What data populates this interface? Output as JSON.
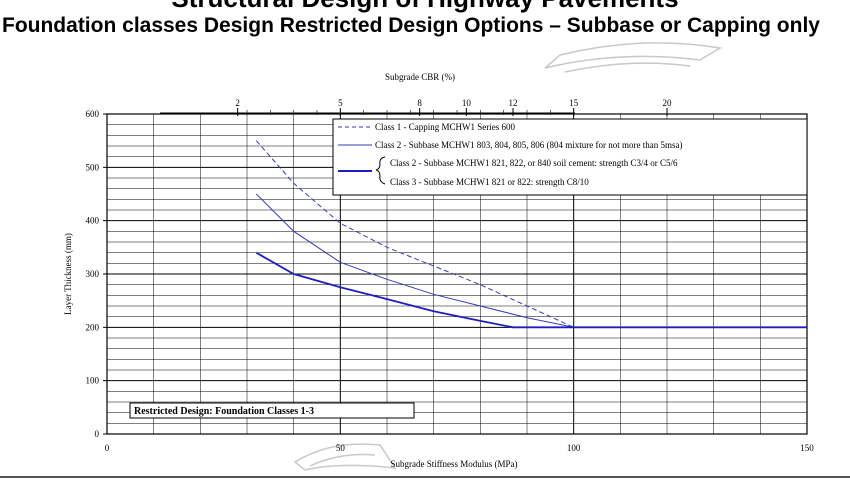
{
  "slide": {
    "title": "Structural Design of Highway Pavements",
    "subtitle": "Foundation classes Design Restricted Design Options – Subbase or Capping only"
  },
  "chart_data": {
    "type": "line",
    "title": "",
    "xlabel": "Subgrade Stiffness Modulus (MPa)",
    "ylabel": "Layer Thickness (mm)",
    "top_axis_label": "Subgrade CBR (%)",
    "xlim": [
      0,
      150
    ],
    "ylim": [
      0,
      600
    ],
    "x_ticks": [
      0,
      50,
      100,
      150
    ],
    "y_ticks": [
      0,
      100,
      200,
      300,
      400,
      500,
      600
    ],
    "top_axis_ticks": [
      {
        "label": "2",
        "x": 28
      },
      {
        "label": "5",
        "x": 50
      },
      {
        "label": "8",
        "x": 67
      },
      {
        "label": "10",
        "x": 77
      },
      {
        "label": "12",
        "x": 87
      },
      {
        "label": "15",
        "x": 100
      },
      {
        "label": "20",
        "x": 120
      }
    ],
    "grid": true,
    "series": [
      {
        "name": "Class 1 - Capping MCHW1 Series 600",
        "style": "dashed",
        "color": "#3a3ab8",
        "points": [
          [
            32,
            550
          ],
          [
            40,
            470
          ],
          [
            50,
            395
          ],
          [
            60,
            350
          ],
          [
            70,
            315
          ],
          [
            80,
            280
          ],
          [
            90,
            240
          ],
          [
            100,
            200
          ],
          [
            150,
            200
          ]
        ]
      },
      {
        "name": "Class 2 - Subbase MCHW1 803, 804, 805, 806 (804 mixture for not more than 5msa)",
        "style": "thin",
        "color": "#3a3ab8",
        "points": [
          [
            32,
            450
          ],
          [
            40,
            380
          ],
          [
            50,
            322
          ],
          [
            60,
            290
          ],
          [
            70,
            262
          ],
          [
            80,
            240
          ],
          [
            90,
            218
          ],
          [
            100,
            200
          ],
          [
            150,
            200
          ]
        ]
      },
      {
        "name": "Class 2 - Subbase MCHW1 821, 822, or 840 soil cement: strength C3/4 or C5/6",
        "name2": "Class 3 - Subbase MCHW1 821 or 822: strength C8/10",
        "style": "thick",
        "color": "#1e1ec0",
        "points": [
          [
            32,
            340
          ],
          [
            40,
            300
          ],
          [
            50,
            275
          ],
          [
            60,
            253
          ],
          [
            70,
            230
          ],
          [
            80,
            212
          ],
          [
            87,
            200
          ],
          [
            100,
            200
          ],
          [
            150,
            200
          ]
        ]
      }
    ],
    "legend_placement": "top-right",
    "annotation": "Restricted Design: Foundation Classes 1-3"
  }
}
